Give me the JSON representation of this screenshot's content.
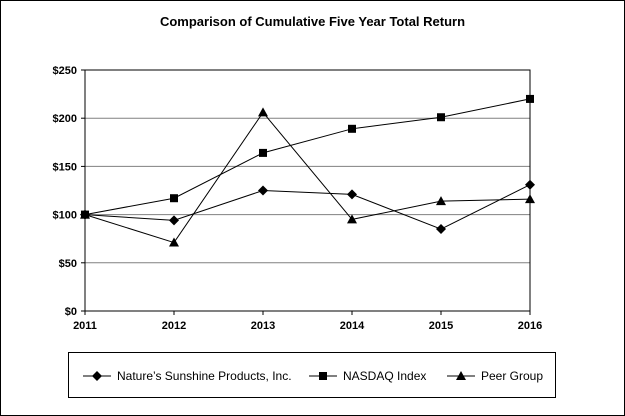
{
  "chart_data": {
    "type": "line",
    "title": "Comparison of Cumulative Five Year Total Return",
    "xlabel": "",
    "ylabel": "",
    "x": [
      "2011",
      "2012",
      "2013",
      "2014",
      "2015",
      "2016"
    ],
    "ylim": [
      0,
      250
    ],
    "yticks": [
      0,
      50,
      100,
      150,
      200,
      250
    ],
    "ytick_labels": [
      "$0",
      "$50",
      "$100",
      "$150",
      "$200",
      "$250"
    ],
    "grid": true,
    "legend_position": "bottom",
    "series": [
      {
        "name": "Nature’s Sunshine Products, Inc.",
        "marker": "diamond",
        "values": [
          100,
          94,
          125,
          121,
          85,
          131
        ]
      },
      {
        "name": "NASDAQ Index",
        "marker": "square",
        "values": [
          100,
          117,
          164,
          189,
          201,
          220
        ]
      },
      {
        "name": "Peer Group",
        "marker": "triangle",
        "values": [
          100,
          71,
          206,
          95,
          114,
          116
        ]
      }
    ],
    "colors": {
      "line": "#000000",
      "grid": "#808080"
    }
  }
}
